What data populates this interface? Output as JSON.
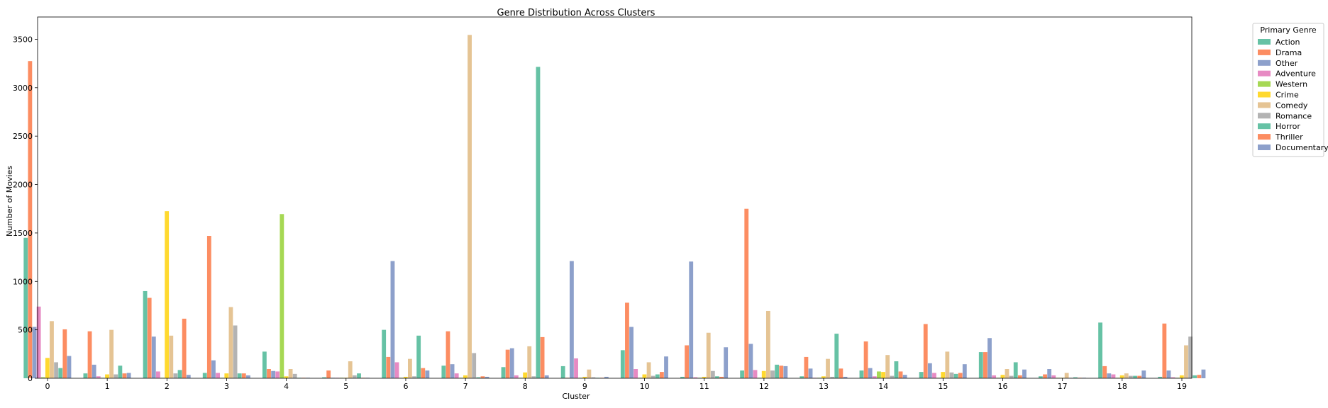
{
  "chart_data": {
    "type": "bar",
    "title": "Genre Distribution Across Clusters",
    "xlabel": "Cluster",
    "ylabel": "Number of Movies",
    "ylim": [
      0,
      3730
    ],
    "yticks": [
      0,
      500,
      1000,
      1500,
      2000,
      2500,
      3000,
      3500
    ],
    "grid": false,
    "legend_title": "Primary Genre",
    "legend_position": "outside-top-right",
    "categories": [
      "0",
      "1",
      "2",
      "3",
      "4",
      "5",
      "6",
      "7",
      "8",
      "9",
      "10",
      "11",
      "12",
      "13",
      "14",
      "15",
      "16",
      "17",
      "18",
      "19"
    ],
    "series": [
      {
        "name": "Action",
        "color": "#66c2a5",
        "values": [
          1450,
          50,
          900,
          55,
          275,
          10,
          500,
          130,
          115,
          125,
          290,
          15,
          80,
          20,
          80,
          65,
          270,
          20,
          575,
          15
        ]
      },
      {
        "name": "Drama",
        "color": "#fc8d62",
        "values": [
          3275,
          485,
          830,
          1470,
          95,
          80,
          220,
          485,
          295,
          5,
          780,
          340,
          1750,
          220,
          380,
          560,
          270,
          40,
          125,
          565
        ]
      },
      {
        "name": "Other",
        "color": "#8da0cb",
        "values": [
          530,
          140,
          430,
          185,
          75,
          5,
          1210,
          145,
          310,
          1210,
          530,
          1205,
          355,
          100,
          105,
          155,
          415,
          95,
          50,
          80
        ]
      },
      {
        "name": "Adventure",
        "color": "#e78ac3",
        "values": [
          740,
          20,
          70,
          55,
          70,
          5,
          165,
          50,
          30,
          205,
          95,
          10,
          85,
          5,
          20,
          55,
          30,
          30,
          40,
          10
        ]
      },
      {
        "name": "Western",
        "color": "#a6d854",
        "values": [
          10,
          5,
          5,
          5,
          1695,
          5,
          5,
          5,
          5,
          5,
          5,
          5,
          5,
          5,
          70,
          5,
          5,
          5,
          5,
          5
        ]
      },
      {
        "name": "Crime",
        "color": "#ffd92f",
        "values": [
          210,
          40,
          1725,
          50,
          20,
          5,
          15,
          30,
          60,
          15,
          40,
          15,
          75,
          20,
          65,
          65,
          35,
          5,
          30,
          30
        ]
      },
      {
        "name": "Comedy",
        "color": "#e5c494",
        "values": [
          590,
          500,
          440,
          735,
          95,
          175,
          200,
          3545,
          330,
          90,
          165,
          470,
          695,
          200,
          240,
          275,
          95,
          55,
          50,
          340
        ]
      },
      {
        "name": "Romance",
        "color": "#b3b3b3",
        "values": [
          165,
          40,
          50,
          545,
          45,
          30,
          20,
          260,
          20,
          10,
          25,
          75,
          80,
          15,
          25,
          60,
          25,
          5,
          25,
          430
        ]
      },
      {
        "name": "Horror",
        "color": "#66c2a5",
        "values": [
          105,
          130,
          85,
          50,
          5,
          50,
          440,
          10,
          3215,
          5,
          40,
          20,
          140,
          460,
          175,
          45,
          165,
          10,
          25,
          30
        ]
      },
      {
        "name": "Thriller",
        "color": "#fc8d62",
        "values": [
          505,
          50,
          615,
          50,
          5,
          5,
          105,
          20,
          425,
          5,
          65,
          15,
          130,
          100,
          70,
          55,
          30,
          5,
          25,
          35
        ]
      },
      {
        "name": "Documentary",
        "color": "#8da0cb",
        "values": [
          230,
          55,
          35,
          30,
          5,
          5,
          80,
          15,
          30,
          15,
          225,
          320,
          125,
          15,
          35,
          145,
          90,
          5,
          80,
          90
        ]
      }
    ]
  }
}
